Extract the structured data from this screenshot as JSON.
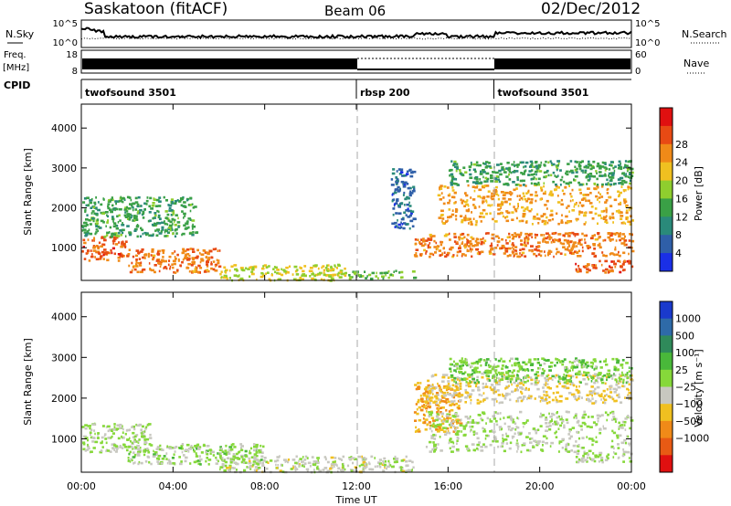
{
  "header": {
    "title": "Saskatoon (fitACF)",
    "beam": "Beam 06",
    "date": "02/Dec/2012"
  },
  "strip": {
    "nsky_label": "N.Sky",
    "nsearch_label": "N.Search",
    "nsky_ticks": [
      "10^5",
      "10^0"
    ],
    "freq_label_1": "Freq.",
    "freq_label_2": "[MHz]",
    "freq_ticks": [
      "18",
      "8"
    ],
    "nave_label": "Nave",
    "nave_ticks": [
      "60",
      "0"
    ],
    "cpid_label": "CPID",
    "modes": [
      {
        "name": "twofsound 3501",
        "start_hour": 0
      },
      {
        "name": "rbsp 200",
        "start_hour": 12
      },
      {
        "name": "twofsound 3501",
        "start_hour": 18
      }
    ]
  },
  "axes": {
    "xlabel": "Time UT",
    "ylabel": "Slant Range [km]",
    "x_ticks": [
      "00:00",
      "04:00",
      "08:00",
      "12:00",
      "16:00",
      "20:00",
      "00:00"
    ],
    "y_ticks": [
      "1000",
      "2000",
      "3000",
      "4000"
    ]
  },
  "power_scale": {
    "label": "Power [dB]",
    "ticks": [
      "4",
      "8",
      "12",
      "16",
      "20",
      "24",
      "28"
    ],
    "colors": [
      "#1a2fe6",
      "#2f5fa8",
      "#2a8a7a",
      "#3aa046",
      "#8fce2e",
      "#f0c020",
      "#f08a18",
      "#e84a14",
      "#e01010"
    ]
  },
  "velocity_scale": {
    "label": "Velocity [m s⁻¹]",
    "ticks": [
      "1000",
      "500",
      "100",
      "25",
      "−25",
      "−100",
      "−500",
      "−1000"
    ],
    "colors": [
      "#1a3acc",
      "#2e6aa8",
      "#2f8a5a",
      "#49b83a",
      "#86d83a",
      "#c8c8c0",
      "#f0c020",
      "#f08a18",
      "#e85a14",
      "#e01010"
    ]
  },
  "chart_data": [
    {
      "type": "heatmap",
      "title": "Power [dB]",
      "xlabel": "Time UT",
      "ylabel": "Slant Range [km]",
      "xlim": [
        0,
        24
      ],
      "ylim": [
        180,
        4600
      ],
      "clim": [
        0,
        32
      ],
      "scatter_regions": [
        {
          "t": [
            0.0,
            2.0
          ],
          "r": [
            700,
            1300
          ],
          "value": 26
        },
        {
          "t": [
            0.0,
            5.0
          ],
          "r": [
            1300,
            2300
          ],
          "value": 12
        },
        {
          "t": [
            2.0,
            6.0
          ],
          "r": [
            400,
            1000
          ],
          "value": 24
        },
        {
          "t": [
            6.0,
            11.5
          ],
          "r": [
            200,
            600
          ],
          "value": 18
        },
        {
          "t": [
            11.5,
            14.5
          ],
          "r": [
            250,
            450
          ],
          "value": 14
        },
        {
          "t": [
            13.5,
            14.5
          ],
          "r": [
            1500,
            3000
          ],
          "value": 6
        },
        {
          "t": [
            14.5,
            24.0
          ],
          "r": [
            800,
            1400
          ],
          "value": 24
        },
        {
          "t": [
            15.5,
            24.0
          ],
          "r": [
            1600,
            2600
          ],
          "value": 22
        },
        {
          "t": [
            16.0,
            24.0
          ],
          "r": [
            2600,
            3200
          ],
          "value": 12
        },
        {
          "t": [
            21.5,
            24.0
          ],
          "r": [
            400,
            700
          ],
          "value": 26
        }
      ]
    },
    {
      "type": "heatmap",
      "title": "Velocity [m s⁻¹]",
      "xlabel": "Time UT",
      "ylabel": "Slant Range [km]",
      "xlim": [
        0,
        24
      ],
      "ylim": [
        180,
        4600
      ],
      "clim": [
        -1000,
        1000
      ],
      "scatter_regions": [
        {
          "t": [
            0.0,
            3.0
          ],
          "r": [
            700,
            1400
          ],
          "value": 0
        },
        {
          "t": [
            2.0,
            8.0
          ],
          "r": [
            400,
            900
          ],
          "value": 60
        },
        {
          "t": [
            6.0,
            14.5
          ],
          "r": [
            200,
            600
          ],
          "value": -60
        },
        {
          "t": [
            14.5,
            16.5
          ],
          "r": [
            1200,
            2400
          ],
          "value": -400
        },
        {
          "t": [
            15.0,
            24.0
          ],
          "r": [
            1900,
            2600
          ],
          "value": -200
        },
        {
          "t": [
            15.0,
            24.0
          ],
          "r": [
            700,
            1700
          ],
          "value": 0
        },
        {
          "t": [
            16.0,
            24.0
          ],
          "r": [
            2400,
            3000
          ],
          "value": 150
        },
        {
          "t": [
            21.5,
            24.0
          ],
          "r": [
            450,
            700
          ],
          "value": 0
        }
      ]
    }
  ]
}
